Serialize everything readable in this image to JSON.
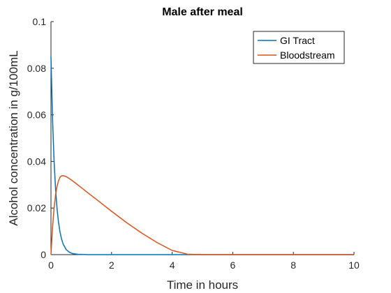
{
  "chart_data": {
    "type": "line",
    "title": "Male after meal",
    "xlabel": "Time in hours",
    "ylabel": "Alcohol concentration in g/100mL",
    "xlim": [
      0,
      10
    ],
    "ylim": [
      0,
      0.1
    ],
    "xticks": [
      "0",
      "2",
      "4",
      "6",
      "8",
      "10"
    ],
    "yticks": [
      "0",
      "0.02",
      "0.04",
      "0.06",
      "0.08",
      "0.1"
    ],
    "grid": false,
    "legend_position": "top-right",
    "series": [
      {
        "name": "GI Tract",
        "color": "#0072BD",
        "x": [
          0,
          0.05,
          0.1,
          0.15,
          0.2,
          0.25,
          0.3,
          0.35,
          0.4,
          0.5,
          0.6,
          0.7,
          0.8,
          0.9,
          1.0,
          1.2,
          1.5,
          2,
          3,
          4,
          5,
          6,
          7,
          8,
          9,
          10
        ],
        "y": [
          0.085,
          0.0591,
          0.0411,
          0.0286,
          0.0199,
          0.0138,
          0.0096,
          0.0067,
          0.0046,
          0.0022,
          0.0011,
          0.0005,
          0.0003,
          0.0001,
          0.0001,
          0,
          0,
          0,
          0,
          0,
          0,
          0,
          0,
          0,
          0,
          0
        ]
      },
      {
        "name": "Bloodstream",
        "color": "#D95319",
        "x": [
          0,
          0.05,
          0.1,
          0.15,
          0.2,
          0.25,
          0.3,
          0.35,
          0.4,
          0.5,
          0.6,
          0.7,
          0.8,
          1.0,
          1.2,
          1.5,
          2.0,
          2.5,
          3.0,
          3.5,
          4.0,
          4.5,
          5,
          6,
          7,
          8,
          9,
          10
        ],
        "y": [
          0,
          0.0113,
          0.0195,
          0.0253,
          0.0293,
          0.0317,
          0.0332,
          0.0338,
          0.0339,
          0.0335,
          0.0327,
          0.0318,
          0.0308,
          0.0288,
          0.0267,
          0.0237,
          0.0186,
          0.0137,
          0.0092,
          0.0052,
          0.0018,
          0.0002,
          0,
          0,
          0,
          0,
          0,
          0
        ]
      }
    ]
  }
}
